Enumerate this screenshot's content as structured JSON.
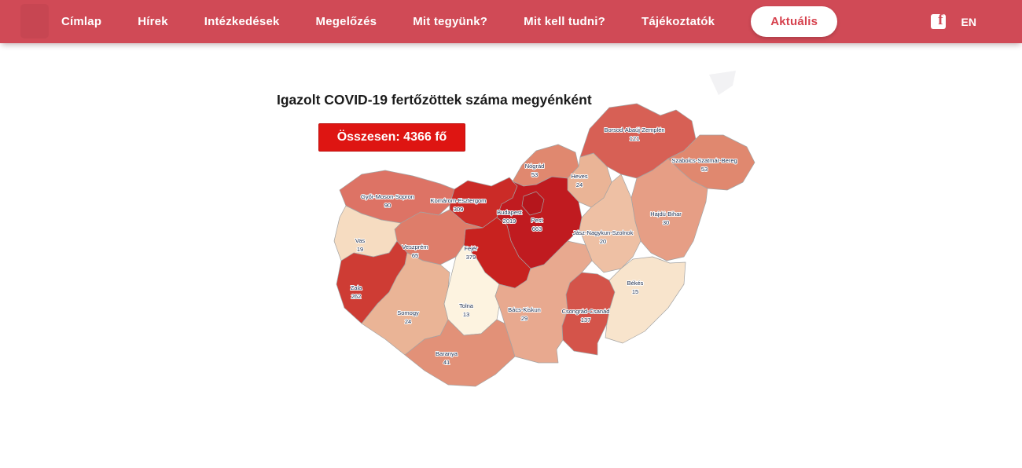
{
  "nav": {
    "bg_color": "#d04a56",
    "active_text_color": "#d6414d",
    "items": [
      {
        "id": "cimlap",
        "label": "Címlap"
      },
      {
        "id": "hirek",
        "label": "Hírek"
      },
      {
        "id": "intezkedesek",
        "label": "Intézkedések"
      },
      {
        "id": "megelozes",
        "label": "Megelőzés"
      },
      {
        "id": "mit-tegyunk",
        "label": "Mit tegyünk?"
      },
      {
        "id": "mit-kell-tudni",
        "label": "Mit kell tudni?"
      },
      {
        "id": "tajekoztatok",
        "label": "Tájékoztatók"
      },
      {
        "id": "aktualis",
        "label": "Aktuális"
      }
    ],
    "active_item_id": "aktualis",
    "language_label": "EN"
  },
  "map": {
    "title": "Igazolt COVID-19 fertőzöttek száma megyénként",
    "total_label": "Összesen: 4366 fő",
    "total_value": 4366,
    "total_bg_color": "#de1512",
    "border_color": "#a3a3a3",
    "label_color": "#1c2b4a",
    "counties": [
      {
        "id": "gyor-moson-sopron",
        "name": "Győr-Moson-Sopron",
        "value": 90,
        "fill": "#dd7365"
      },
      {
        "id": "komarom-esztergom",
        "name": "Komárom-Esztergom",
        "value": 309,
        "fill": "#cb2b27"
      },
      {
        "id": "nograd",
        "name": "Nógrád",
        "value": 53,
        "fill": "#e0886f"
      },
      {
        "id": "heves",
        "name": "Heves",
        "value": 24,
        "fill": "#eab496"
      },
      {
        "id": "borsod-abauj-zemplen",
        "name": "Borsod-Abaúj-Zemplén",
        "value": 121,
        "fill": "#d76055"
      },
      {
        "id": "szabolcs-szatmar-bereg",
        "name": "Szabolcs-Szatmár-Bereg",
        "value": 53,
        "fill": "#e0886f"
      },
      {
        "id": "hajdu-bihar",
        "name": "Hajdú-Bihar",
        "value": 30,
        "fill": "#e69e85"
      },
      {
        "id": "jasz-nagykun-szolnok",
        "name": "Jász-Nagykun-Szolnok",
        "value": 20,
        "fill": "#eec0a4"
      },
      {
        "id": "pest",
        "name": "Pest",
        "value": 663,
        "fill": "#c01b20"
      },
      {
        "id": "budapest",
        "name": "Budapest",
        "value": 2019,
        "fill": "#b5161c"
      },
      {
        "id": "fejer",
        "name": "Fejér",
        "value": 379,
        "fill": "#c8221f"
      },
      {
        "id": "veszprem",
        "name": "Veszprém",
        "value": 65,
        "fill": "#de7d6a"
      },
      {
        "id": "vas",
        "name": "Vas",
        "value": 19,
        "fill": "#f6dcc1"
      },
      {
        "id": "zala",
        "name": "Zala",
        "value": 262,
        "fill": "#ce3c34"
      },
      {
        "id": "somogy",
        "name": "Somogy",
        "value": 24,
        "fill": "#eab496"
      },
      {
        "id": "tolna",
        "name": "Tolna",
        "value": 13,
        "fill": "#fdf3e0"
      },
      {
        "id": "baranya",
        "name": "Baranya",
        "value": 41,
        "fill": "#e29178"
      },
      {
        "id": "bacs-kiskun",
        "name": "Bács-Kiskun",
        "value": 29,
        "fill": "#e8a98f"
      },
      {
        "id": "csongrad-csanad",
        "name": "Csongrád-Csanád",
        "value": 137,
        "fill": "#d4544a"
      },
      {
        "id": "bekes",
        "name": "Békés",
        "value": 15,
        "fill": "#f8e4cc"
      }
    ]
  },
  "chart_data": {
    "type": "choropleth",
    "title": "Igazolt COVID-19 fertőzöttek száma megyénként",
    "annotation": "Összesen: 4366 fő",
    "categories": [
      "Győr-Moson-Sopron",
      "Komárom-Esztergom",
      "Nógrád",
      "Heves",
      "Borsod-Abaúj-Zemplén",
      "Szabolcs-Szatmár-Bereg",
      "Hajdú-Bihar",
      "Jász-Nagykun-Szolnok",
      "Pest",
      "Budapest",
      "Fejér",
      "Veszprém",
      "Vas",
      "Zala",
      "Somogy",
      "Tolna",
      "Baranya",
      "Bács-Kiskun",
      "Csongrád-Csanád",
      "Békés"
    ],
    "values": [
      90,
      309,
      53,
      24,
      121,
      53,
      30,
      20,
      663,
      2019,
      379,
      65,
      19,
      262,
      24,
      13,
      41,
      29,
      137,
      15
    ],
    "legend_position": "none",
    "color_scale": [
      "#fdf3e0",
      "#b5161c"
    ]
  }
}
